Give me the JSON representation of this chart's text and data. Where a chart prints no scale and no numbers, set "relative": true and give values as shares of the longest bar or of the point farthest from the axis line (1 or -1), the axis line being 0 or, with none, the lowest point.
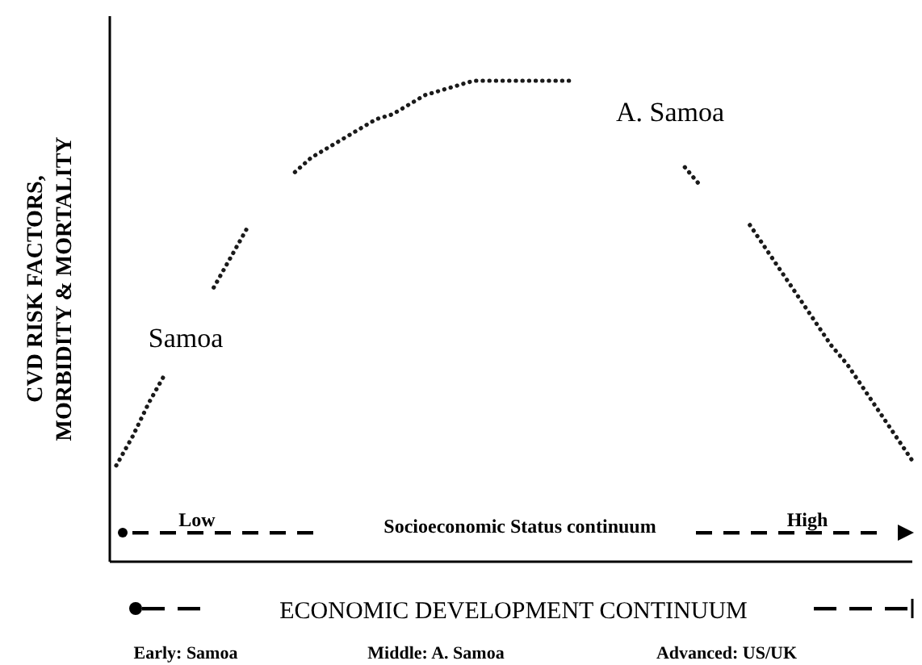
{
  "chart_data": {
    "type": "line",
    "relative": true,
    "line_style": "dotted",
    "xlabel": "ECONOMIC DEVELOPMENT CONTINUUM",
    "ylabel": "CVD RISK FACTORS, MORBIDITY & MORTALITY",
    "categories": [
      null,
      null,
      null,
      null,
      null,
      null,
      null,
      null,
      null,
      null,
      null,
      null,
      null,
      null,
      null,
      null,
      null,
      null,
      null,
      null,
      null,
      null,
      null,
      null,
      null,
      null,
      null,
      null,
      null,
      null,
      null,
      null,
      null,
      null,
      null,
      null,
      null,
      null,
      null,
      null,
      null,
      null,
      null,
      null,
      null,
      null,
      null,
      null,
      null,
      null
    ],
    "series": [
      {
        "color": "#1a1a1a",
        "values": [
          0.2,
          0.26,
          0.33,
          0.39,
          null,
          null,
          null,
          null,
          null,
          null,
          null,
          null,
          null,
          null,
          null,
          null,
          null,
          null,
          null,
          null,
          null,
          null,
          null,
          null,
          null,
          null,
          null,
          null,
          null,
          null,
          null,
          null,
          null,
          null,
          null,
          null,
          null,
          null,
          null,
          null,
          null,
          null,
          null,
          null,
          null,
          null,
          null,
          null,
          null,
          null
        ]
      },
      {
        "color": "#1a1a1a",
        "values": [
          null,
          null,
          null,
          null,
          null,
          null,
          0.57,
          0.63,
          0.69,
          null,
          null,
          null,
          null,
          null,
          null,
          null,
          null,
          null,
          null,
          null,
          null,
          null,
          null,
          null,
          null,
          null,
          null,
          null,
          null,
          null,
          null,
          null,
          null,
          null,
          null,
          null,
          null,
          null,
          null,
          null,
          null,
          null,
          null,
          null,
          null,
          null,
          null,
          null,
          null,
          null
        ]
      },
      {
        "color": "#1a1a1a",
        "values": [
          null,
          null,
          null,
          null,
          null,
          null,
          null,
          null,
          null,
          null,
          null,
          0.81,
          0.84,
          0.86,
          0.88,
          0.9,
          0.92,
          0.93,
          0.95,
          0.97,
          0.98,
          0.99,
          1,
          1,
          1,
          1,
          1,
          1,
          1,
          null,
          null,
          null,
          null,
          null,
          null,
          null,
          null,
          null,
          null,
          null,
          null,
          null,
          null,
          null,
          null,
          null,
          null,
          null,
          null,
          null
        ]
      },
      {
        "color": "#1a1a1a",
        "values": [
          null,
          null,
          null,
          null,
          null,
          null,
          null,
          null,
          null,
          null,
          null,
          null,
          null,
          null,
          null,
          null,
          null,
          null,
          null,
          null,
          null,
          null,
          null,
          null,
          null,
          null,
          null,
          null,
          null,
          null,
          null,
          null,
          null,
          null,
          null,
          0.82,
          0.78,
          null,
          null,
          null,
          null,
          null,
          null,
          null,
          null,
          null,
          null,
          null,
          null,
          null
        ]
      },
      {
        "color": "#1a1a1a",
        "values": [
          null,
          null,
          null,
          null,
          null,
          null,
          null,
          null,
          null,
          null,
          null,
          null,
          null,
          null,
          null,
          null,
          null,
          null,
          null,
          null,
          null,
          null,
          null,
          null,
          null,
          null,
          null,
          null,
          null,
          null,
          null,
          null,
          null,
          null,
          null,
          null,
          null,
          null,
          null,
          0.7,
          0.65,
          0.6,
          0.55,
          0.5,
          0.45,
          0.41,
          0.36,
          0.31,
          0.26,
          0.21
        ]
      }
    ],
    "annotations": [
      "Samoa",
      "A. Samoa",
      "Low",
      "Socioeconomic Status continuum",
      "High",
      "Early: Samoa",
      "Middle: A. Samoa",
      "Advanced: US/UK"
    ]
  }
}
